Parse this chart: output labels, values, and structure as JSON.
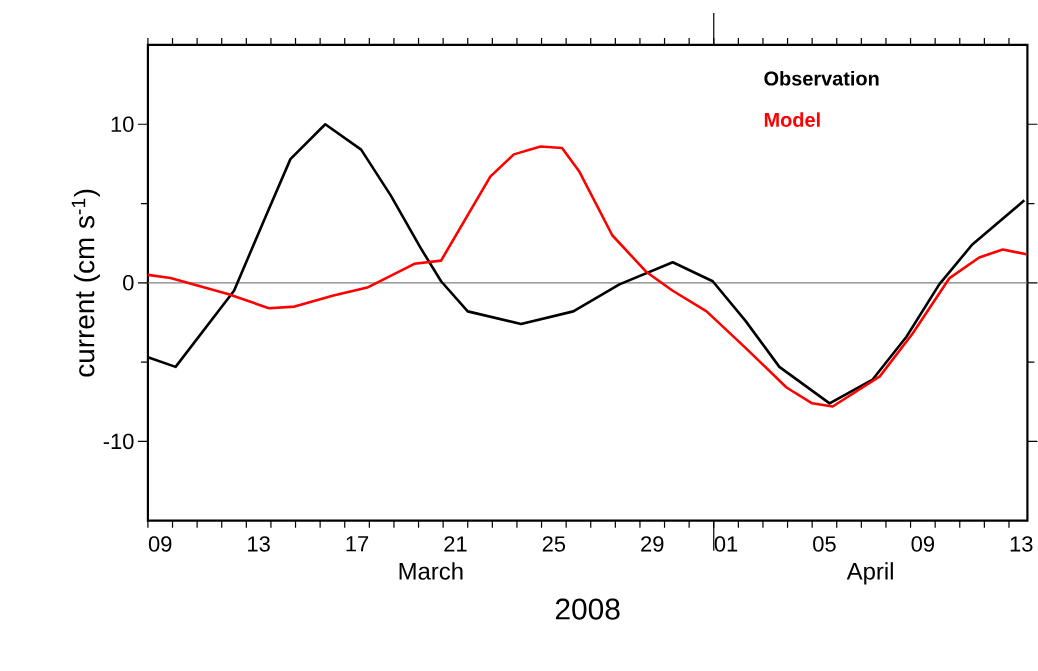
{
  "chart_data": {
    "type": "line",
    "xlabel": "2008",
    "ylabel": "current (cm s$^{-1}$)",
    "xlim": [
      "2008-03-09T00:00",
      "2008-04-13T18:00"
    ],
    "xticks": [
      {
        "value": "2008-03-09T12:00",
        "label": "09"
      },
      {
        "value": "2008-03-13T12:00",
        "label": "13"
      },
      {
        "value": "2008-03-17T12:00",
        "label": "17"
      },
      {
        "value": "2008-03-21T12:00",
        "label": "21"
      },
      {
        "value": "2008-03-25T12:00",
        "label": "25"
      },
      {
        "value": "2008-03-29T12:00",
        "label": "29"
      },
      {
        "value": "2008-04-01T12:00",
        "label": "01"
      },
      {
        "value": "2008-04-05T12:00",
        "label": "05"
      },
      {
        "value": "2008-04-09T12:00",
        "label": "09"
      },
      {
        "value": "2008-04-13T12:00",
        "label": "13"
      }
    ],
    "ylim": [
      -15,
      15
    ],
    "yticks": [
      -10,
      0,
      10
    ],
    "annotations": [
      "March",
      "April"
    ],
    "ref_lines": [
      {
        "axis": "y",
        "value": 0,
        "color": "#808080"
      }
    ],
    "legend": "top right",
    "grid": false,
    "marker": "none",
    "line_style": "solid",
    "series": [
      {
        "name": "Observation",
        "color": "#000000",
        "x": [
          "2008-03-09T00:00",
          "2008-03-10T03:00",
          "2008-03-12T12:00",
          "2008-03-13T17:00",
          "2008-03-14T19:00",
          "2008-03-16T05:00",
          "2008-03-17T16:00",
          "2008-03-18T21:00",
          "2008-03-20T02:00",
          "2008-03-20T22:00",
          "2008-03-22T00:00",
          "2008-03-24T04:00",
          "2008-03-26T07:00",
          "2008-03-28T04:00",
          "2008-03-30T08:00",
          "2008-03-31T23:00",
          "2008-04-02T07:00",
          "2008-04-03T16:00",
          "2008-04-05T17:00",
          "2008-04-07T11:00",
          "2008-04-08T20:00",
          "2008-04-10T04:00",
          "2008-04-11T12:00",
          "2008-04-13T15:00"
        ],
        "values": [
          -4.7,
          -5.3,
          -0.5,
          3.9,
          7.8,
          10.0,
          8.4,
          5.5,
          2.2,
          0.1,
          -1.8,
          -2.6,
          -1.8,
          -0.1,
          1.3,
          0.1,
          -2.4,
          -5.3,
          -7.6,
          -6.1,
          -3.4,
          -0.1,
          2.4,
          5.2
        ]
      },
      {
        "name": "Model",
        "color": "#ff0000",
        "x": [
          "2008-03-09T00:00",
          "2008-03-09T22:00",
          "2008-03-12T06:00",
          "2008-03-13T22:00",
          "2008-03-14T23:00",
          "2008-03-16T13:00",
          "2008-03-17T22:00",
          "2008-03-19T20:00",
          "2008-03-20T22:00",
          "2008-03-22T22:00",
          "2008-03-23T21:00",
          "2008-03-24T23:00",
          "2008-03-25T20:00",
          "2008-03-26T13:00",
          "2008-03-27T21:00",
          "2008-03-29T06:00",
          "2008-03-30T08:00",
          "2008-03-31T17:00",
          "2008-04-02T07:00",
          "2008-04-03T23:00",
          "2008-04-05T00:00",
          "2008-04-05T20:00",
          "2008-04-07T18:00",
          "2008-04-09T02:00",
          "2008-04-10T14:00",
          "2008-04-11T19:00",
          "2008-04-12T18:00",
          "2008-04-13T17:00"
        ],
        "values": [
          0.5,
          0.3,
          -0.7,
          -1.6,
          -1.5,
          -0.8,
          -0.3,
          1.2,
          1.4,
          6.7,
          8.1,
          8.6,
          8.5,
          7.0,
          3.0,
          0.7,
          -0.5,
          -1.8,
          -4.1,
          -6.6,
          -7.6,
          -7.8,
          -5.9,
          -3.2,
          0.3,
          1.6,
          2.1,
          1.8
        ]
      }
    ]
  }
}
